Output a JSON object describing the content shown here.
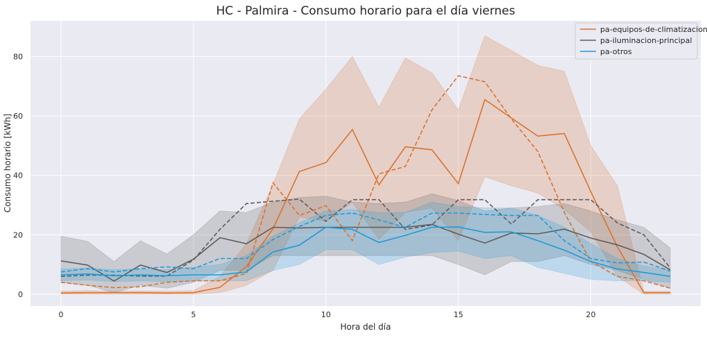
{
  "chart_data": {
    "type": "line",
    "title": "HC - Palmira - Consumo horario para el día viernes",
    "xlabel": "Hora del día",
    "ylabel": "Consumo horario [kWh]",
    "xlim": [
      -1.15,
      24.15
    ],
    "ylim": [
      -4,
      92
    ],
    "xticks": [
      0,
      5,
      10,
      15,
      20
    ],
    "yticks": [
      0,
      20,
      40,
      60,
      80
    ],
    "grid": true,
    "legend_position": "top-right",
    "x": [
      0,
      1,
      2,
      3,
      4,
      5,
      6,
      7,
      8,
      9,
      10,
      11,
      12,
      13,
      14,
      15,
      16,
      17,
      18,
      19,
      20,
      21,
      22,
      23
    ],
    "series": [
      {
        "name": "pa-equipos-de-climatizacion",
        "color": "#d9732e",
        "values": [
          0.4,
          0.5,
          0.5,
          0.5,
          0.4,
          0.5,
          2.3,
          9.3,
          22,
          41.3,
          44.3,
          55.4,
          36.8,
          49.6,
          48.6,
          37.2,
          65.5,
          59.3,
          53.2,
          54.1,
          34.5,
          16,
          0.5,
          0.5
        ],
        "dashed": [
          4,
          3,
          2.2,
          2.5,
          4,
          4.5,
          4.5,
          7,
          37.5,
          26.5,
          29.8,
          18,
          40.5,
          43,
          62,
          73.5,
          71.5,
          59,
          48,
          27.5,
          11,
          6,
          4.5,
          2
        ],
        "band_upper": [
          1,
          1.2,
          1,
          1.1,
          1,
          1.2,
          6,
          17,
          37,
          59,
          69,
          80,
          63,
          79.5,
          74.5,
          62,
          87,
          82,
          77,
          75,
          50,
          36.5,
          1,
          1
        ],
        "band_lower": [
          0,
          0,
          0,
          0,
          0,
          0,
          0.5,
          3,
          8,
          26,
          24.5,
          31,
          18.5,
          27.5,
          29,
          18,
          39.5,
          36.5,
          34,
          28.5,
          21,
          6,
          0,
          0
        ]
      },
      {
        "name": "pa-iluminacion-principal",
        "color": "#5d5d5d",
        "values": [
          11.2,
          9.8,
          4.4,
          9.8,
          7.3,
          11.8,
          19,
          17,
          22.5,
          22.3,
          22.5,
          22.5,
          22.5,
          22.5,
          23.5,
          20.2,
          17.2,
          20.6,
          20.3,
          21.9,
          18.9,
          16.6,
          13.4,
          8.2
        ],
        "dashed": [
          6,
          6.4,
          6.4,
          6.1,
          6.1,
          11.5,
          21.8,
          30.5,
          31.3,
          32,
          24.5,
          31.8,
          31.8,
          21.8,
          23.3,
          31.8,
          31.8,
          23.6,
          31.8,
          31.8,
          31.8,
          24,
          20,
          8.8
        ],
        "band_upper": [
          19.5,
          17.8,
          11,
          18,
          13.5,
          20,
          28,
          27.5,
          31,
          32.5,
          33,
          31,
          30.5,
          31,
          33.8,
          31.5,
          28,
          29,
          29.5,
          30.5,
          28,
          25,
          22.5,
          15.5
        ],
        "band_lower": [
          4,
          3,
          0.5,
          3,
          2,
          4,
          8,
          8,
          13,
          13,
          13,
          13,
          13,
          13,
          13,
          10,
          6.5,
          11,
          11,
          13,
          10,
          8,
          5,
          2
        ]
      },
      {
        "name": "pa-otros",
        "color": "#1e9bd7",
        "values": [
          6.5,
          6.8,
          6.2,
          6.5,
          6.2,
          6.5,
          6.5,
          7.5,
          14.2,
          16.5,
          22.5,
          21.8,
          17.4,
          19.8,
          22.5,
          22.6,
          20.8,
          21,
          18,
          14.8,
          11,
          8.5,
          7.3,
          6
        ],
        "dashed": [
          7.5,
          8.6,
          7.5,
          8.6,
          9.2,
          8.6,
          12,
          12,
          18.4,
          22.8,
          26.5,
          27.3,
          25,
          22.5,
          27.3,
          27.3,
          26.8,
          26.5,
          26.5,
          18,
          12,
          10.5,
          10.8,
          7.8
        ],
        "band_upper": [
          8.5,
          8.8,
          8.2,
          8.5,
          8.2,
          9,
          10,
          13,
          19.5,
          24,
          28,
          28.5,
          27.5,
          27.5,
          31,
          29.5,
          29,
          29,
          26.5,
          22.5,
          17,
          12,
          9.5,
          8
        ],
        "band_lower": [
          4.5,
          4.8,
          4.2,
          4.5,
          4.2,
          4.5,
          4.5,
          4.5,
          8,
          10,
          15,
          15,
          10,
          12.5,
          14,
          14.5,
          12,
          13,
          9,
          7,
          5,
          4.5,
          4.5,
          4
        ]
      }
    ]
  }
}
